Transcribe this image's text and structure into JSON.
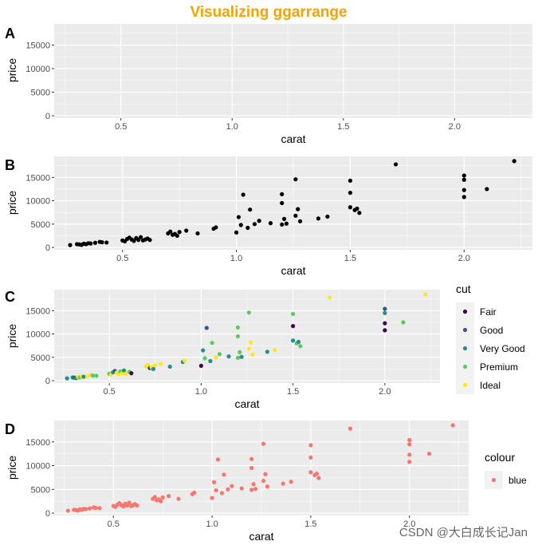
{
  "title": "Visualizing ggarrange",
  "title_color": "#F4A300",
  "watermark": "CSDN @大白成长记Jan",
  "chart_data": [
    {
      "type": "scatter",
      "tag": "A",
      "empty": true,
      "xlabel": "carat",
      "ylabel": "price",
      "xlim": [
        0.2,
        2.35
      ],
      "ylim": [
        -500,
        19500
      ],
      "xticks": [
        0.5,
        1.0,
        1.5,
        2.0
      ],
      "xtick_labels": [
        "0.5",
        "1.0",
        "1.5",
        "2.0"
      ],
      "yticks": [
        0,
        5000,
        10000,
        15000
      ],
      "ytick_labels": [
        "0",
        "5000",
        "10000",
        "15000"
      ],
      "grid": true,
      "point_color": "#000000"
    },
    {
      "type": "scatter",
      "tag": "B",
      "empty": false,
      "xlabel": "carat",
      "ylabel": "price",
      "xlim": [
        0.2,
        2.3
      ],
      "ylim": [
        -500,
        19500
      ],
      "xticks": [
        0.5,
        1.0,
        1.5,
        2.0
      ],
      "xtick_labels": [
        "0.5",
        "1.0",
        "1.5",
        "2.0"
      ],
      "yticks": [
        0,
        5000,
        10000,
        15000
      ],
      "ytick_labels": [
        "0",
        "5000",
        "10000",
        "15000"
      ],
      "grid": true,
      "point_color": "#000000"
    },
    {
      "type": "scatter",
      "tag": "C",
      "empty": false,
      "xlabel": "carat",
      "ylabel": "price",
      "xlim": [
        0.2,
        2.3
      ],
      "ylim": [
        -500,
        19500
      ],
      "xticks": [
        0.5,
        1.0,
        1.5,
        2.0
      ],
      "xtick_labels": [
        "0.5",
        "1.0",
        "1.5",
        "2.0"
      ],
      "yticks": [
        0,
        5000,
        10000,
        15000
      ],
      "ytick_labels": [
        "0",
        "5000",
        "10000",
        "15000"
      ],
      "grid": true,
      "color_by": "cut",
      "legend": {
        "title": "cut",
        "position": "right",
        "items": [
          {
            "label": "Fair",
            "color": "#440154"
          },
          {
            "label": "Good",
            "color": "#3B528B"
          },
          {
            "label": "Very Good",
            "color": "#21908C"
          },
          {
            "label": "Premium",
            "color": "#5DC863"
          },
          {
            "label": "Ideal",
            "color": "#FDE725"
          }
        ]
      }
    },
    {
      "type": "scatter",
      "tag": "D",
      "empty": false,
      "xlabel": "carat",
      "ylabel": "price",
      "xlim": [
        0.2,
        2.3
      ],
      "ylim": [
        -500,
        19500
      ],
      "xticks": [
        0.5,
        1.0,
        1.5,
        2.0
      ],
      "xtick_labels": [
        "0.5",
        "1.0",
        "1.5",
        "2.0"
      ],
      "yticks": [
        0,
        5000,
        10000,
        15000
      ],
      "ytick_labels": [
        "0",
        "5000",
        "10000",
        "15000"
      ],
      "grid": true,
      "point_color": "#F8766D",
      "legend": {
        "title": "colour",
        "position": "right",
        "items": [
          {
            "label": "blue",
            "color": "#F8766D"
          }
        ]
      }
    }
  ],
  "points": [
    {
      "x": 0.27,
      "y": 500,
      "cut": "Very Good"
    },
    {
      "x": 0.3,
      "y": 700,
      "cut": "Very Good"
    },
    {
      "x": 0.31,
      "y": 650,
      "cut": "Good"
    },
    {
      "x": 0.32,
      "y": 550,
      "cut": "Very Good"
    },
    {
      "x": 0.33,
      "y": 800,
      "cut": "Ideal"
    },
    {
      "x": 0.34,
      "y": 700,
      "cut": "Premium"
    },
    {
      "x": 0.35,
      "y": 900,
      "cut": "Ideal"
    },
    {
      "x": 0.36,
      "y": 850,
      "cut": "Very Good"
    },
    {
      "x": 0.38,
      "y": 1000,
      "cut": "Ideal"
    },
    {
      "x": 0.4,
      "y": 1200,
      "cut": "Ideal"
    },
    {
      "x": 0.41,
      "y": 1100,
      "cut": "Premium"
    },
    {
      "x": 0.43,
      "y": 1050,
      "cut": "Premium"
    },
    {
      "x": 0.5,
      "y": 1500,
      "cut": "Premium"
    },
    {
      "x": 0.51,
      "y": 1300,
      "cut": "Ideal"
    },
    {
      "x": 0.52,
      "y": 1800,
      "cut": "Very Good"
    },
    {
      "x": 0.53,
      "y": 2100,
      "cut": "Good"
    },
    {
      "x": 0.54,
      "y": 1700,
      "cut": "Ideal"
    },
    {
      "x": 0.55,
      "y": 1400,
      "cut": "Ideal"
    },
    {
      "x": 0.56,
      "y": 2000,
      "cut": "Premium"
    },
    {
      "x": 0.57,
      "y": 1600,
      "cut": "Ideal"
    },
    {
      "x": 0.58,
      "y": 2200,
      "cut": "Very Good"
    },
    {
      "x": 0.59,
      "y": 1500,
      "cut": "Ideal"
    },
    {
      "x": 0.6,
      "y": 1700,
      "cut": "Ideal"
    },
    {
      "x": 0.61,
      "y": 1900,
      "cut": "Premium"
    },
    {
      "x": 0.62,
      "y": 1600,
      "cut": "Fair"
    },
    {
      "x": 0.7,
      "y": 3000,
      "cut": "Ideal"
    },
    {
      "x": 0.71,
      "y": 3400,
      "cut": "Ideal"
    },
    {
      "x": 0.72,
      "y": 2700,
      "cut": "Good"
    },
    {
      "x": 0.73,
      "y": 2900,
      "cut": "Ideal"
    },
    {
      "x": 0.74,
      "y": 2500,
      "cut": "Very Good"
    },
    {
      "x": 0.75,
      "y": 3300,
      "cut": "Ideal"
    },
    {
      "x": 0.78,
      "y": 3600,
      "cut": "Ideal"
    },
    {
      "x": 0.83,
      "y": 3000,
      "cut": "Very Good"
    },
    {
      "x": 0.9,
      "y": 4000,
      "cut": "Very Good"
    },
    {
      "x": 0.91,
      "y": 4300,
      "cut": "Ideal"
    },
    {
      "x": 1.0,
      "y": 3200,
      "cut": "Fair"
    },
    {
      "x": 1.01,
      "y": 6500,
      "cut": "Very Good"
    },
    {
      "x": 1.02,
      "y": 4800,
      "cut": "Premium"
    },
    {
      "x": 1.03,
      "y": 11300,
      "cut": "Good"
    },
    {
      "x": 1.05,
      "y": 4200,
      "cut": "Very Good"
    },
    {
      "x": 1.06,
      "y": 8100,
      "cut": "Premium"
    },
    {
      "x": 1.08,
      "y": 5000,
      "cut": "Ideal"
    },
    {
      "x": 1.1,
      "y": 5700,
      "cut": "Premium"
    },
    {
      "x": 1.15,
      "y": 5200,
      "cut": "Very Good"
    },
    {
      "x": 1.2,
      "y": 11400,
      "cut": "Premium"
    },
    {
      "x": 1.2,
      "y": 9500,
      "cut": "Premium"
    },
    {
      "x": 1.2,
      "y": 4900,
      "cut": "Premium"
    },
    {
      "x": 1.21,
      "y": 6100,
      "cut": "Premium"
    },
    {
      "x": 1.22,
      "y": 5100,
      "cut": "Very Good"
    },
    {
      "x": 1.26,
      "y": 14600,
      "cut": "Premium"
    },
    {
      "x": 1.26,
      "y": 6800,
      "cut": "Ideal"
    },
    {
      "x": 1.27,
      "y": 8200,
      "cut": "Ideal"
    },
    {
      "x": 1.28,
      "y": 5600,
      "cut": "Ideal"
    },
    {
      "x": 1.36,
      "y": 6200,
      "cut": "Very Good"
    },
    {
      "x": 1.4,
      "y": 6600,
      "cut": "Ideal"
    },
    {
      "x": 1.5,
      "y": 14300,
      "cut": "Premium"
    },
    {
      "x": 1.5,
      "y": 11700,
      "cut": "Fair"
    },
    {
      "x": 1.5,
      "y": 8600,
      "cut": "Very Good"
    },
    {
      "x": 1.52,
      "y": 8000,
      "cut": "Premium"
    },
    {
      "x": 1.53,
      "y": 8300,
      "cut": "Very Good"
    },
    {
      "x": 1.54,
      "y": 7400,
      "cut": "Premium"
    },
    {
      "x": 1.7,
      "y": 17800,
      "cut": "Ideal"
    },
    {
      "x": 2.0,
      "y": 15400,
      "cut": "Good"
    },
    {
      "x": 2.0,
      "y": 14500,
      "cut": "Very Good"
    },
    {
      "x": 2.0,
      "y": 12300,
      "cut": "Fair"
    },
    {
      "x": 2.0,
      "y": 10800,
      "cut": "Fair"
    },
    {
      "x": 2.1,
      "y": 12500,
      "cut": "Premium"
    },
    {
      "x": 2.22,
      "y": 18500,
      "cut": "Ideal"
    }
  ]
}
